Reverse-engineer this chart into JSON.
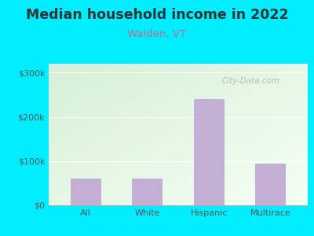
{
  "title": "Median household income in 2022",
  "subtitle": "Walden, VT",
  "categories": [
    "All",
    "White",
    "Hispanic",
    "Multirace"
  ],
  "values": [
    60000,
    60000,
    240000,
    95000
  ],
  "bar_color": "#c4afd4",
  "background_color": "#00eeff",
  "title_color": "#333333",
  "subtitle_color": "#cc6688",
  "axis_label_color": "#555555",
  "ytick_labels": [
    "$0",
    "$100k",
    "$200k",
    "$300k"
  ],
  "ytick_values": [
    0,
    100000,
    200000,
    300000
  ],
  "ylim": [
    0,
    320000
  ],
  "watermark": "City-Data.com",
  "title_fontsize": 12.5,
  "subtitle_fontsize": 9.5,
  "tick_fontsize": 8
}
